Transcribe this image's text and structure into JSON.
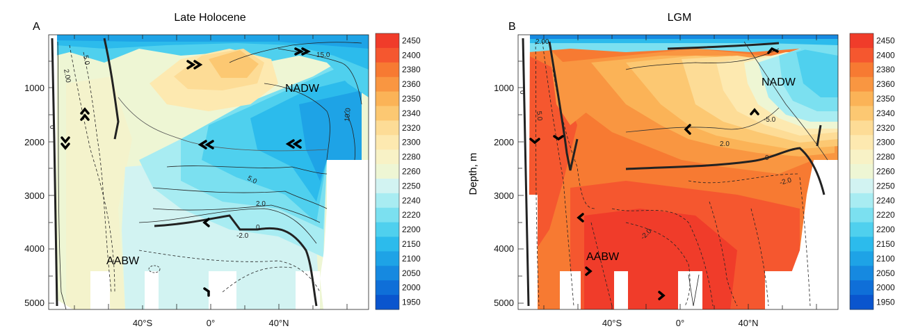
{
  "figure": {
    "panels": [
      {
        "letter": "A",
        "title": "Late Holocene"
      },
      {
        "letter": "B",
        "title": "LGM"
      }
    ],
    "ylabel_b": "Depth, m",
    "y_ticks": [
      "1000",
      "2000",
      "3000",
      "4000",
      "5000"
    ],
    "x_ticks": [
      "40°S",
      "0°",
      "40°N"
    ]
  },
  "colorbar": {
    "levels": [
      "2450",
      "2400",
      "2380",
      "2360",
      "2350",
      "2340",
      "2320",
      "2300",
      "2280",
      "2260",
      "2250",
      "2240",
      "2220",
      "2200",
      "2150",
      "2100",
      "2050",
      "2000",
      "1950"
    ],
    "colors": [
      "#f03c2a",
      "#f5572f",
      "#f77a32",
      "#f99641",
      "#fbb357",
      "#fcc872",
      "#fddc96",
      "#fde9b0",
      "#f8f2c6",
      "#eef6d4",
      "#d2f3f2",
      "#a8ecf2",
      "#7be0f0",
      "#4fd0ee",
      "#2cbbec",
      "#1ea3e6",
      "#1689e0",
      "#0f6fd8",
      "#0a55ce"
    ]
  },
  "annotations": {
    "a_nadw": "NADW",
    "a_aabw": "AABW",
    "b_nadw": "NADW",
    "b_aabw": "AABW",
    "a_contours": [
      "2.00",
      "5.0",
      "0",
      "15.0",
      "10.0",
      "5.0",
      "2.0",
      "-2.0",
      "0"
    ],
    "b_contours": [
      "2.00",
      "5.0",
      "0",
      "-5.0",
      "2.0",
      "0",
      "-2.0",
      "-2.0"
    ]
  },
  "chart_data": [
    {
      "type": "heatmap",
      "title": "Late Holocene",
      "panel": "A",
      "xlabel": "",
      "ylabel": "",
      "x_ticks": [
        "40°S",
        "0°",
        "40°N"
      ],
      "xlim": [
        -80,
        70
      ],
      "ylim": [
        5100,
        0
      ],
      "y_ticks": [
        1000,
        2000,
        3000,
        4000,
        5000
      ],
      "colorbar_levels": [
        1950,
        2000,
        2050,
        2100,
        2150,
        2200,
        2220,
        2240,
        2250,
        2260,
        2280,
        2300,
        2320,
        2340,
        2350,
        2360,
        2380,
        2400,
        2450
      ],
      "labels": [
        "NADW",
        "AABW"
      ],
      "contour_labels": [
        "2.00",
        "5.0",
        "0",
        "15.0",
        "10.0",
        "5.0",
        "2.0",
        "-2.0",
        "0"
      ]
    },
    {
      "type": "heatmap",
      "title": "LGM",
      "panel": "B",
      "xlabel": "",
      "ylabel": "Depth, m",
      "x_ticks": [
        "40°S",
        "0°",
        "40°N"
      ],
      "xlim": [
        -80,
        70
      ],
      "ylim": [
        5100,
        0
      ],
      "y_ticks": [
        1000,
        2000,
        3000,
        4000,
        5000
      ],
      "colorbar_levels": [
        1950,
        2000,
        2050,
        2100,
        2150,
        2200,
        2220,
        2240,
        2250,
        2260,
        2280,
        2300,
        2320,
        2340,
        2350,
        2360,
        2380,
        2400,
        2450
      ],
      "labels": [
        "NADW",
        "AABW"
      ],
      "contour_labels": [
        "2.00",
        "5.0",
        "0",
        "-5.0",
        "2.0",
        "0",
        "-2.0",
        "-2.0"
      ]
    }
  ]
}
